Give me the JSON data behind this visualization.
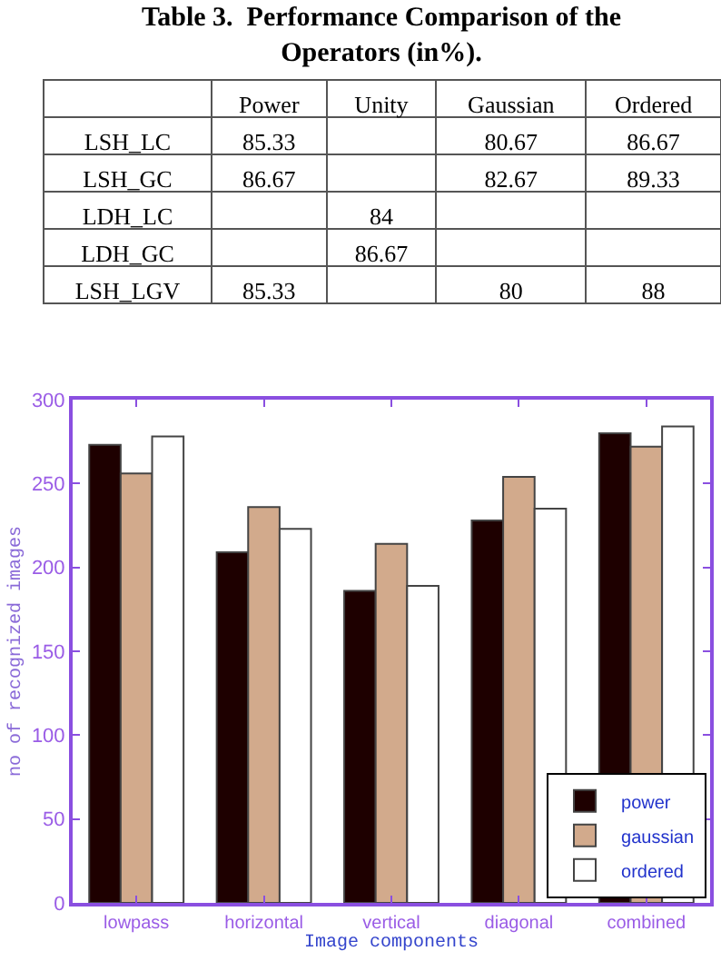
{
  "chart_data": [
    {
      "type": "other",
      "title": "Table 3.  Performance Comparison of the\nOperators (in%).",
      "categories": [
        "Power",
        "Unity",
        "Gaussian",
        "Ordered"
      ],
      "y_categories": [
        "LSH_LC",
        "LSH_GC",
        "LDH_LC",
        "LDH_GC",
        "LSH_LGV"
      ],
      "cell_labels": [
        [
          "85.33",
          null,
          "80.67",
          "86.67"
        ],
        [
          "86.67",
          null,
          "82.67",
          "89.33"
        ],
        [
          null,
          "84",
          null,
          null
        ],
        [
          null,
          "86.67",
          null,
          null
        ],
        [
          "85.33",
          null,
          "80",
          "88"
        ]
      ]
    },
    {
      "type": "bar",
      "xlabel": "Image components",
      "ylabel": "no of recognized images",
      "categories": [
        "lowpass",
        "horizontal",
        "vertical",
        "diagonal",
        "combined"
      ],
      "series": [
        {
          "name": "power",
          "color": "#1e0000",
          "values": [
            273,
            209,
            186,
            228,
            280
          ]
        },
        {
          "name": "gaussian",
          "color": "#d2aa8c",
          "values": [
            256,
            236,
            214,
            254,
            272
          ]
        },
        {
          "name": "ordered",
          "color": "#ffffff",
          "values": [
            278,
            223,
            189,
            235,
            284
          ]
        }
      ],
      "ylim": [
        0,
        300
      ],
      "yticks": [
        0,
        50,
        100,
        150,
        200,
        250,
        300
      ],
      "legend": "bottom right"
    }
  ]
}
